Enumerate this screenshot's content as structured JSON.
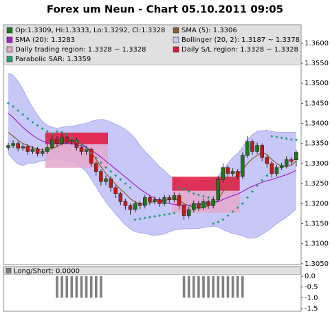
{
  "chart_data": [
    {
      "type": "candlestick",
      "title": "Forex um Neun - Chart 05.10.2011 09:05",
      "ylim": [
        1.3048,
        1.3646
      ],
      "yticks": [
        {
          "value": 1.305,
          "label": "1.3050"
        },
        {
          "value": 1.31,
          "label": "1.3100"
        },
        {
          "value": 1.315,
          "label": "1.3150"
        },
        {
          "value": 1.32,
          "label": "1.3200"
        },
        {
          "value": 1.325,
          "label": "1.3250"
        },
        {
          "value": 1.33,
          "label": "1.3300"
        },
        {
          "value": 1.335,
          "label": "1.3350"
        },
        {
          "value": 1.34,
          "label": "1.3400"
        },
        {
          "value": 1.345,
          "label": "1.3450"
        },
        {
          "value": 1.35,
          "label": "1.3500"
        },
        {
          "value": 1.355,
          "label": "1.3550"
        },
        {
          "value": 1.36,
          "label": "1.3600"
        }
      ],
      "ohlc": {
        "name": "Op:1.3309, Hi:1.3333, Lo:1.3292, Cl:1.3328",
        "color": "#1a7a1a",
        "down_color": "#c81818",
        "open": [
          1.334,
          1.3345,
          1.335,
          1.3338,
          1.3342,
          1.333,
          1.3336,
          1.3325,
          1.333,
          1.334,
          1.336,
          1.335,
          1.3365,
          1.3355,
          1.3358,
          1.334,
          1.333,
          1.3335,
          1.33,
          1.328,
          1.3255,
          1.3262,
          1.324,
          1.3225,
          1.3205,
          1.3195,
          1.3185,
          1.32,
          1.3195,
          1.3215,
          1.3205,
          1.321,
          1.32,
          1.3215,
          1.321,
          1.322,
          1.3195,
          1.317,
          1.3185,
          1.32,
          1.319,
          1.3205,
          1.3195,
          1.321,
          1.326,
          1.329,
          1.3275,
          1.328,
          1.3268,
          1.332,
          1.3355,
          1.333,
          1.3345,
          1.3315,
          1.33,
          1.3275,
          1.329,
          1.3295,
          1.331,
          1.3309
        ],
        "high": [
          1.3352,
          1.3358,
          1.3356,
          1.3349,
          1.3348,
          1.3343,
          1.3341,
          1.3337,
          1.3348,
          1.3372,
          1.3368,
          1.3378,
          1.3372,
          1.3366,
          1.3364,
          1.3346,
          1.3344,
          1.334,
          1.3306,
          1.3286,
          1.327,
          1.3268,
          1.3246,
          1.323,
          1.3212,
          1.32,
          1.3207,
          1.3206,
          1.3222,
          1.322,
          1.3218,
          1.3216,
          1.3222,
          1.3221,
          1.3228,
          1.3226,
          1.32,
          1.3192,
          1.3208,
          1.3206,
          1.3212,
          1.321,
          1.3218,
          1.3268,
          1.33,
          1.3296,
          1.3288,
          1.3286,
          1.3328,
          1.3368,
          1.336,
          1.3352,
          1.335,
          1.332,
          1.3306,
          1.3297,
          1.3302,
          1.3318,
          1.3316,
          1.3333
        ],
        "low": [
          1.3332,
          1.3338,
          1.333,
          1.3331,
          1.3322,
          1.3324,
          1.3318,
          1.3318,
          1.3324,
          1.3335,
          1.3342,
          1.3345,
          1.3348,
          1.3347,
          1.3332,
          1.3322,
          1.3322,
          1.3292,
          1.327,
          1.3245,
          1.3246,
          1.323,
          1.3214,
          1.3196,
          1.3185,
          1.3172,
          1.3178,
          1.3186,
          1.3188,
          1.3196,
          1.3198,
          1.3192,
          1.3194,
          1.3202,
          1.3204,
          1.3186,
          1.316,
          1.3163,
          1.3178,
          1.3182,
          1.3184,
          1.3187,
          1.3188,
          1.3204,
          1.3252,
          1.3266,
          1.3268,
          1.326,
          1.3262,
          1.3314,
          1.3322,
          1.3324,
          1.3306,
          1.329,
          1.3265,
          1.3268,
          1.3284,
          1.3288,
          1.3296,
          1.3292
        ],
        "close": [
          1.3345,
          1.335,
          1.3338,
          1.3342,
          1.333,
          1.3336,
          1.3325,
          1.333,
          1.334,
          1.336,
          1.335,
          1.3365,
          1.3355,
          1.3358,
          1.334,
          1.333,
          1.3335,
          1.33,
          1.328,
          1.3255,
          1.3262,
          1.324,
          1.3225,
          1.3205,
          1.3195,
          1.3185,
          1.32,
          1.3195,
          1.3215,
          1.3205,
          1.321,
          1.32,
          1.3215,
          1.321,
          1.322,
          1.3195,
          1.317,
          1.3185,
          1.32,
          1.319,
          1.3205,
          1.3195,
          1.321,
          1.326,
          1.329,
          1.3275,
          1.328,
          1.3268,
          1.332,
          1.3355,
          1.333,
          1.3345,
          1.3315,
          1.33,
          1.3275,
          1.329,
          1.3295,
          1.331,
          1.3305,
          1.3328
        ]
      },
      "band": {
        "name": "Bollinger (20, 2): 1.3187 ~ 1.3378",
        "color": "#c8c8f8",
        "line_color": "#a8a8f0",
        "upper": [
          1.3525,
          1.352,
          1.3505,
          1.3485,
          1.346,
          1.344,
          1.342,
          1.3405,
          1.3395,
          1.339,
          1.3388,
          1.339,
          1.3392,
          1.3393,
          1.3395,
          1.3398,
          1.34,
          1.3405,
          1.3408,
          1.341,
          1.3408,
          1.3403,
          1.3398,
          1.3392,
          1.3385,
          1.3375,
          1.3362,
          1.3345,
          1.333,
          1.3318,
          1.3305,
          1.3292,
          1.3282,
          1.327,
          1.3262,
          1.3258,
          1.3255,
          1.3255,
          1.3256,
          1.3258,
          1.3258,
          1.3258,
          1.326,
          1.3268,
          1.3285,
          1.33,
          1.3315,
          1.3325,
          1.334,
          1.336,
          1.3372,
          1.338,
          1.3382,
          1.3383,
          1.338,
          1.3378,
          1.3378,
          1.3378,
          1.3378,
          1.3378
        ],
        "lower": [
          1.3325,
          1.331,
          1.3299,
          1.3295,
          1.33,
          1.33,
          1.3304,
          1.3307,
          1.3309,
          1.331,
          1.3312,
          1.331,
          1.3308,
          1.3305,
          1.3299,
          1.329,
          1.328,
          1.3261,
          1.3242,
          1.3222,
          1.3204,
          1.3189,
          1.3174,
          1.316,
          1.3147,
          1.3137,
          1.313,
          1.3127,
          1.3126,
          1.3122,
          1.3121,
          1.3122,
          1.3124,
          1.313,
          1.3134,
          1.3136,
          1.3137,
          1.3137,
          1.3138,
          1.3138,
          1.314,
          1.3142,
          1.3144,
          1.3142,
          1.3135,
          1.313,
          1.3125,
          1.3123,
          1.312,
          1.3114,
          1.3114,
          1.3116,
          1.3124,
          1.3131,
          1.314,
          1.315,
          1.3158,
          1.3166,
          1.3176,
          1.3187
        ]
      },
      "regions": [
        {
          "name": "Daily trading region: 1.3328 ~ 1.3328",
          "color": "#e4a8cc",
          "spans": [
            {
              "from": 8,
              "to": 20,
              "low": 1.3289,
              "high": 1.3377
            },
            {
              "from": 34,
              "to": 47,
              "low": 1.3177,
              "high": 1.3232
            }
          ]
        },
        {
          "name": "Daily S/L region: 1.3328 ~ 1.3328",
          "color": "#e0163c",
          "spans": [
            {
              "from": 8,
              "to": 20,
              "low": 1.3348,
              "high": 1.3377
            },
            {
              "from": 34,
              "to": 47,
              "low": 1.3232,
              "high": 1.3267
            }
          ]
        }
      ],
      "series": [
        {
          "name": "SMA (5): 1.3306",
          "color": "#8b5a2b",
          "style": "line",
          "values": [
            1.3378,
            1.3368,
            1.3358,
            1.335,
            1.3345,
            1.334,
            1.3336,
            1.3334,
            1.3334,
            1.3338,
            1.3342,
            1.335,
            1.3355,
            1.3357,
            1.3355,
            1.335,
            1.334,
            1.3328,
            1.331,
            1.3292,
            1.3275,
            1.3262,
            1.3248,
            1.3236,
            1.3225,
            1.3212,
            1.3204,
            1.32,
            1.32,
            1.3202,
            1.3205,
            1.3207,
            1.3208,
            1.321,
            1.3212,
            1.3208,
            1.32,
            1.3195,
            1.319,
            1.3188,
            1.319,
            1.3195,
            1.3198,
            1.321,
            1.323,
            1.3245,
            1.326,
            1.3272,
            1.3285,
            1.33,
            1.3312,
            1.332,
            1.3328,
            1.3322,
            1.331,
            1.33,
            1.3293,
            1.3292,
            1.3296,
            1.3306
          ]
        },
        {
          "name": "SMA (20): 1.3283",
          "color": "#a020d0",
          "style": "line",
          "values": [
            1.3425,
            1.3415,
            1.3402,
            1.339,
            1.338,
            1.337,
            1.3362,
            1.3356,
            1.3352,
            1.335,
            1.335,
            1.335,
            1.335,
            1.3349,
            1.3347,
            1.3344,
            1.334,
            1.3333,
            1.3325,
            1.3316,
            1.3306,
            1.3296,
            1.3286,
            1.3276,
            1.3266,
            1.3256,
            1.3246,
            1.3236,
            1.3228,
            1.322,
            1.3213,
            1.3207,
            1.3203,
            1.32,
            1.3198,
            1.3197,
            1.3196,
            1.3196,
            1.3197,
            1.3198,
            1.3199,
            1.32,
            1.3202,
            1.3205,
            1.321,
            1.3215,
            1.322,
            1.3224,
            1.323,
            1.3237,
            1.3243,
            1.3248,
            1.3253,
            1.3257,
            1.326,
            1.3264,
            1.3268,
            1.3272,
            1.3277,
            1.3283
          ]
        },
        {
          "name": "Parabolic SAR: 1.3359",
          "color": "#1fa070",
          "style": "dots",
          "values": [
            1.345,
            1.3442,
            1.3432,
            1.3422,
            1.3412,
            1.3403,
            1.3395,
            1.3387,
            1.338,
            1.3374,
            1.338,
            1.3378,
            1.3372,
            1.3364,
            1.3355,
            1.3346,
            1.3336,
            1.3326,
            1.3314,
            1.3302,
            1.329,
            1.328,
            1.327,
            1.326,
            1.325,
            1.324,
            1.316,
            1.3162,
            1.3164,
            1.3166,
            1.3168,
            1.317,
            1.3172,
            1.3174,
            1.3176,
            1.324,
            1.3236,
            1.323,
            1.3225,
            1.3222,
            1.3218,
            1.3215,
            1.315,
            1.3154,
            1.316,
            1.317,
            1.318,
            1.319,
            1.32,
            1.3215,
            1.323,
            1.3245,
            1.3258,
            1.327,
            1.3368,
            1.3366,
            1.3364,
            1.3362,
            1.336,
            1.3359
          ]
        }
      ]
    },
    {
      "type": "bar",
      "title": "Long/Short: 0.0000",
      "color": "#808080",
      "ylim": [
        -1.63,
        0.45
      ],
      "yticks": [
        {
          "value": 0,
          "label": "0.0"
        },
        {
          "value": -0.5,
          "label": "-0.5"
        },
        {
          "value": -1,
          "label": "-1.0"
        },
        {
          "value": -1.5,
          "label": "-1.5"
        }
      ],
      "values": [
        0,
        0,
        0,
        0,
        0,
        0,
        0,
        0,
        0,
        0,
        -1,
        -1,
        -1,
        -1,
        -1,
        -1,
        -1,
        -1,
        -1,
        -1,
        0,
        0,
        0,
        0,
        0,
        0,
        0,
        0,
        0,
        0,
        0,
        0,
        0,
        0,
        0,
        0,
        -1,
        -1,
        -1,
        -1,
        -1,
        -1,
        -1,
        -1,
        -1,
        -1,
        -1,
        -1,
        -1,
        0,
        0,
        0,
        0,
        0,
        0,
        0,
        0,
        0,
        0,
        0
      ]
    }
  ]
}
